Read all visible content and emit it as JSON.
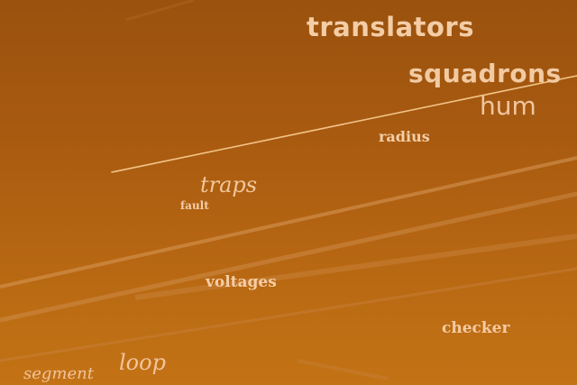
{
  "scene": {
    "description_color": "#b2600f",
    "words": {
      "translators": "translators",
      "squadrons": "squadrons",
      "hum": "hum",
      "radius": "radius",
      "traps": "traps",
      "fault": "fault",
      "voltages": "voltages",
      "checker": "checker",
      "loop": "loop",
      "segment": "segment"
    }
  }
}
